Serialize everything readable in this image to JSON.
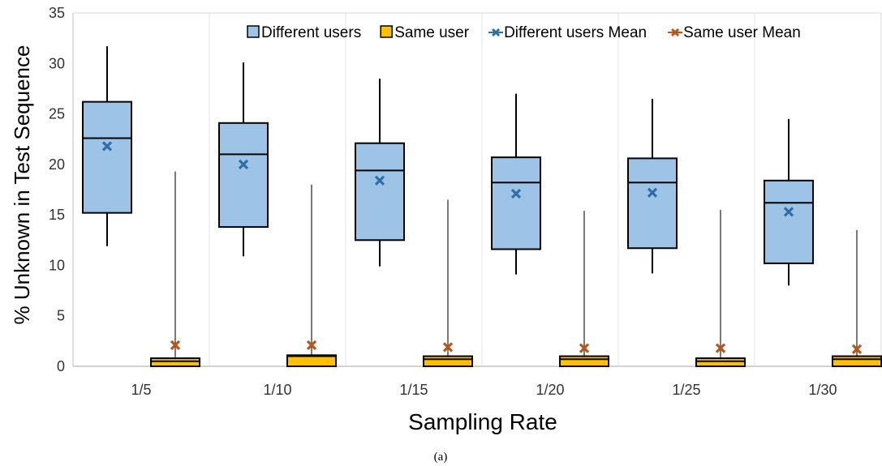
{
  "chart_data": {
    "type": "box",
    "xlabel": "Sampling Rate",
    "ylabel": "% Unknown in Test Sequence",
    "ylim": [
      0,
      35
    ],
    "yticks": [
      0,
      5,
      10,
      15,
      20,
      25,
      30,
      35
    ],
    "grid": "vertical category separators",
    "legend_position": "top",
    "caption": "(a)",
    "categories": [
      "1/5",
      "1/10",
      "1/15",
      "1/20",
      "1/25",
      "1/30"
    ],
    "series": [
      {
        "name": "Different users",
        "color": "#9DC3E6",
        "boxes": [
          {
            "whisker_low": 11.9,
            "q1": 15.2,
            "median": 22.6,
            "q3": 26.2,
            "whisker_high": 31.7,
            "mean": 21.8
          },
          {
            "whisker_low": 10.9,
            "q1": 13.8,
            "median": 21.0,
            "q3": 24.1,
            "whisker_high": 30.1,
            "mean": 20.0
          },
          {
            "whisker_low": 9.9,
            "q1": 12.5,
            "median": 19.4,
            "q3": 22.1,
            "whisker_high": 28.5,
            "mean": 18.4
          },
          {
            "whisker_low": 9.1,
            "q1": 11.6,
            "median": 18.2,
            "q3": 20.7,
            "whisker_high": 27.0,
            "mean": 17.1
          },
          {
            "whisker_low": 9.2,
            "q1": 11.7,
            "median": 18.2,
            "q3": 20.6,
            "whisker_high": 26.5,
            "mean": 17.2
          },
          {
            "whisker_low": 8.0,
            "q1": 10.2,
            "median": 16.2,
            "q3": 18.4,
            "whisker_high": 24.5,
            "mean": 15.3
          }
        ]
      },
      {
        "name": "Same user",
        "color": "#FFC000",
        "boxes": [
          {
            "whisker_low": 0,
            "q1": 0,
            "median": 0.5,
            "q3": 0.8,
            "whisker_high": 19.3,
            "mean": 2.1
          },
          {
            "whisker_low": 0,
            "q1": 0,
            "median": 1.0,
            "q3": 1.1,
            "whisker_high": 18.0,
            "mean": 2.1
          },
          {
            "whisker_low": 0,
            "q1": 0,
            "median": 0.7,
            "q3": 1.0,
            "whisker_high": 16.5,
            "mean": 1.9
          },
          {
            "whisker_low": 0,
            "q1": 0,
            "median": 0.7,
            "q3": 1.0,
            "whisker_high": 15.4,
            "mean": 1.8
          },
          {
            "whisker_low": 0,
            "q1": 0,
            "median": 0.5,
            "q3": 0.8,
            "whisker_high": 15.5,
            "mean": 1.8
          },
          {
            "whisker_low": 0,
            "q1": 0,
            "median": 0.7,
            "q3": 1.0,
            "whisker_high": 13.5,
            "mean": 1.7
          }
        ]
      }
    ],
    "legend": [
      {
        "label": "Different users",
        "kind": "box",
        "color": "#9DC3E6"
      },
      {
        "label": "Same user",
        "kind": "box",
        "color": "#FFC000"
      },
      {
        "label": "Different users Mean",
        "kind": "mean",
        "color": "#2E6FA8"
      },
      {
        "label": "Same user Mean",
        "kind": "mean",
        "color": "#B5561C"
      }
    ]
  }
}
